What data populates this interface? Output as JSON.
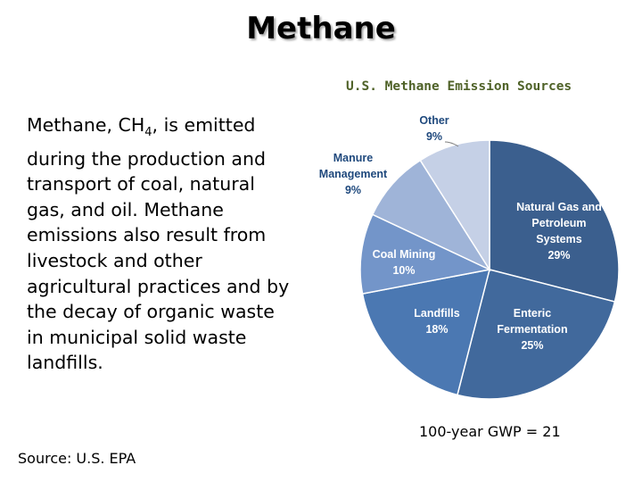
{
  "slide": {
    "title": "Methane",
    "body_pre": "Methane, CH",
    "body_sub": "4",
    "body_post": ", is emitted during the production and transport of coal, natural gas, and oil. Methane emissions also result from livestock and other agricultural practices and by the decay of organic waste in municipal solid waste landfills.",
    "gwp_note": "100-year GWP = 21",
    "source": "Source: U.S. EPA"
  },
  "chart_data": {
    "type": "pie",
    "title": "U.S. Methane Emission Sources",
    "slices": [
      {
        "label": "Natural Gas and Petroleum Systems",
        "value": 29,
        "value_label": "29%",
        "color": "#3b5f8e"
      },
      {
        "label": "Enteric Fermentation",
        "value": 25,
        "value_label": "25%",
        "color": "#41699c"
      },
      {
        "label": "Landfills",
        "value": 18,
        "value_label": "18%",
        "color": "#4b78b2"
      },
      {
        "label": "Coal Mining",
        "value": 10,
        "value_label": "10%",
        "color": "#7395c9"
      },
      {
        "label": "Manure Management",
        "value": 9,
        "value_label": "9%",
        "color": "#9fb4d8"
      },
      {
        "label": "Other",
        "value": 9,
        "value_label": "9%",
        "color": "#c5d0e6"
      }
    ]
  }
}
